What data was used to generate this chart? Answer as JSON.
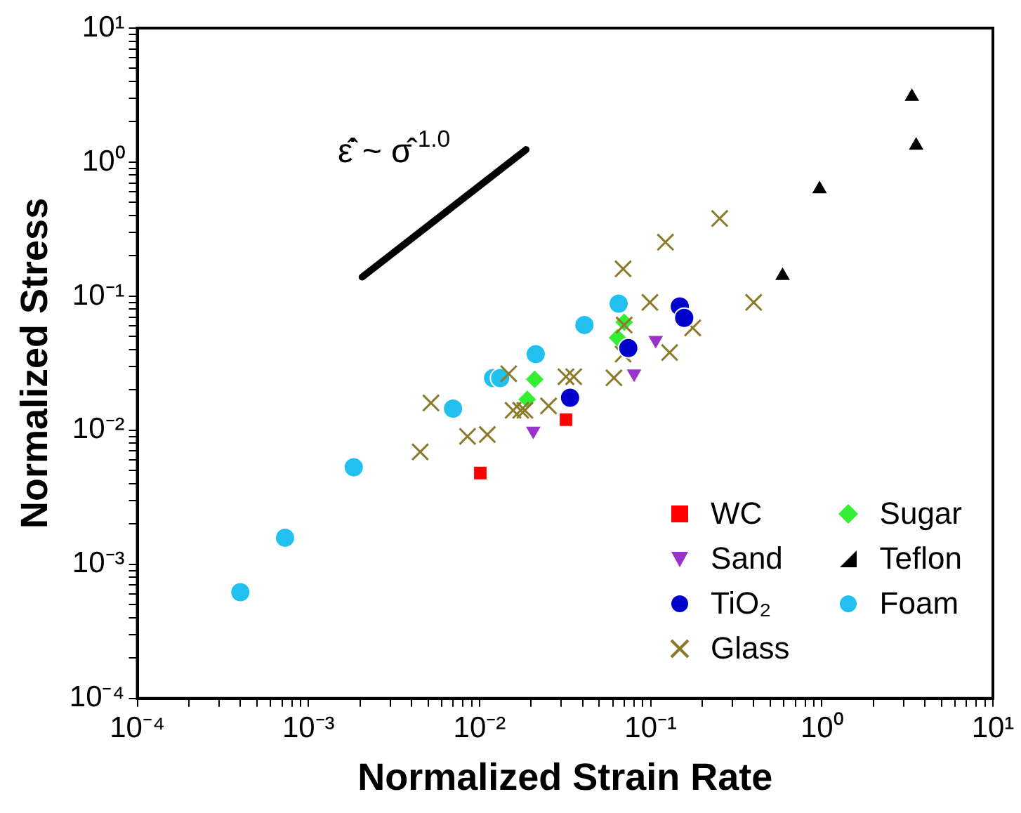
{
  "chart_data": {
    "type": "scatter",
    "xlabel": "Normalized Strain Rate",
    "ylabel": "Normalized Stress",
    "log": "xy",
    "grid": false,
    "legend": "bottom right",
    "xlim": [
      0.0001,
      10
    ],
    "ylim": [
      0.0001,
      10
    ],
    "xticks": [
      {
        "value": 0.0001,
        "label": "10⁻⁴"
      },
      {
        "value": 0.0002,
        "label": null
      },
      {
        "value": 0.0003,
        "label": null
      },
      {
        "value": 0.0004,
        "label": null
      },
      {
        "value": 0.0005,
        "label": null
      },
      {
        "value": 0.0006,
        "label": null
      },
      {
        "value": 0.0007,
        "label": null
      },
      {
        "value": 0.0008,
        "label": null
      },
      {
        "value": 0.0009,
        "label": null
      },
      {
        "value": 0.001,
        "label": "10⁻³"
      },
      {
        "value": 0.002,
        "label": null
      },
      {
        "value": 0.003,
        "label": null
      },
      {
        "value": 0.004,
        "label": null
      },
      {
        "value": 0.005,
        "label": null
      },
      {
        "value": 0.006,
        "label": null
      },
      {
        "value": 0.007,
        "label": null
      },
      {
        "value": 0.008,
        "label": null
      },
      {
        "value": 0.009,
        "label": null
      },
      {
        "value": 0.01,
        "label": "10⁻²"
      },
      {
        "value": 0.02,
        "label": null
      },
      {
        "value": 0.03,
        "label": null
      },
      {
        "value": 0.04,
        "label": null
      },
      {
        "value": 0.05,
        "label": null
      },
      {
        "value": 0.06,
        "label": null
      },
      {
        "value": 0.07,
        "label": null
      },
      {
        "value": 0.08,
        "label": null
      },
      {
        "value": 0.09,
        "label": null
      },
      {
        "value": 0.1,
        "label": "10⁻¹"
      },
      {
        "value": 0.2,
        "label": null
      },
      {
        "value": 0.3,
        "label": null
      },
      {
        "value": 0.4,
        "label": null
      },
      {
        "value": 0.5,
        "label": null
      },
      {
        "value": 0.6,
        "label": null
      },
      {
        "value": 0.7,
        "label": null
      },
      {
        "value": 0.8,
        "label": null
      },
      {
        "value": 0.9,
        "label": null
      },
      {
        "value": 1,
        "label": "10⁰"
      },
      {
        "value": 2,
        "label": null
      },
      {
        "value": 3,
        "label": null
      },
      {
        "value": 4,
        "label": null
      },
      {
        "value": 5,
        "label": null
      },
      {
        "value": 6,
        "label": null
      },
      {
        "value": 7,
        "label": null
      },
      {
        "value": 8,
        "label": null
      },
      {
        "value": 9,
        "label": null
      },
      {
        "value": 10,
        "label": "10¹"
      }
    ],
    "yticks": [
      {
        "value": 0.0001,
        "label": "10⁻⁴"
      },
      {
        "value": 0.0002,
        "label": null
      },
      {
        "value": 0.0003,
        "label": null
      },
      {
        "value": 0.0004,
        "label": null
      },
      {
        "value": 0.0005,
        "label": null
      },
      {
        "value": 0.0006,
        "label": null
      },
      {
        "value": 0.0007,
        "label": null
      },
      {
        "value": 0.0008,
        "label": null
      },
      {
        "value": 0.0009,
        "label": null
      },
      {
        "value": 0.001,
        "label": "10⁻³"
      },
      {
        "value": 0.002,
        "label": null
      },
      {
        "value": 0.003,
        "label": null
      },
      {
        "value": 0.004,
        "label": null
      },
      {
        "value": 0.005,
        "label": null
      },
      {
        "value": 0.006,
        "label": null
      },
      {
        "value": 0.007,
        "label": null
      },
      {
        "value": 0.008,
        "label": null
      },
      {
        "value": 0.009,
        "label": null
      },
      {
        "value": 0.01,
        "label": "10⁻²"
      },
      {
        "value": 0.02,
        "label": null
      },
      {
        "value": 0.03,
        "label": null
      },
      {
        "value": 0.04,
        "label": null
      },
      {
        "value": 0.05,
        "label": null
      },
      {
        "value": 0.06,
        "label": null
      },
      {
        "value": 0.07,
        "label": null
      },
      {
        "value": 0.08,
        "label": null
      },
      {
        "value": 0.09,
        "label": null
      },
      {
        "value": 0.1,
        "label": "10⁻¹"
      },
      {
        "value": 0.2,
        "label": null
      },
      {
        "value": 0.3,
        "label": null
      },
      {
        "value": 0.4,
        "label": null
      },
      {
        "value": 0.5,
        "label": null
      },
      {
        "value": 0.6,
        "label": null
      },
      {
        "value": 0.7,
        "label": null
      },
      {
        "value": 0.8,
        "label": null
      },
      {
        "value": 0.9,
        "label": null
      },
      {
        "value": 1,
        "label": "10⁰"
      },
      {
        "value": 2,
        "label": null
      },
      {
        "value": 3,
        "label": null
      },
      {
        "value": 4,
        "label": null
      },
      {
        "value": 5,
        "label": null
      },
      {
        "value": 6,
        "label": null
      },
      {
        "value": 7,
        "label": null
      },
      {
        "value": 8,
        "label": null
      },
      {
        "value": 9,
        "label": null
      },
      {
        "value": 10,
        "label": "10¹"
      }
    ],
    "annotations": [
      "ε̂̇ ~ σ̂$^{1.0}$"
    ],
    "series": [
      {
        "name": "WC",
        "color": "#ff0000",
        "marker": "square",
        "x": [
          0.0101,
          0.032
        ],
        "values": [
          0.0048,
          0.012
        ]
      },
      {
        "name": "Sand",
        "color": "#9933cc",
        "marker": "triangle-down",
        "x": [
          0.0206,
          0.08,
          0.107
        ],
        "values": [
          0.0099,
          0.0264,
          0.047
        ]
      },
      {
        "name": "TiO₂",
        "color": "#0000cc",
        "marker": "circle",
        "x": [
          0.0338,
          0.074,
          0.148,
          0.157
        ],
        "values": [
          0.0175,
          0.041,
          0.084,
          0.069
        ]
      },
      {
        "name": "Glass",
        "color": "#8b7a2a",
        "marker": "cross",
        "x": [
          0.253,
          0.122,
          0.069,
          0.099,
          0.4,
          0.176,
          0.07,
          0.129,
          0.069,
          0.061,
          0.032,
          0.0355,
          0.0052,
          0.0148,
          0.0253,
          0.0045,
          0.0085,
          0.0111,
          0.0157,
          0.0174,
          0.0184
        ],
        "values": [
          0.38,
          0.253,
          0.16,
          0.09,
          0.09,
          0.058,
          0.061,
          0.038,
          0.037,
          0.0246,
          0.0251,
          0.0251,
          0.016,
          0.0264,
          0.0152,
          0.0069,
          0.009,
          0.0093,
          0.0141,
          0.0141,
          0.0141
        ]
      },
      {
        "name": "Sugar",
        "color": "#33ee33",
        "marker": "diamond",
        "x": [
          0.064,
          0.07,
          0.021,
          0.019
        ],
        "values": [
          0.049,
          0.064,
          0.024,
          0.017
        ]
      },
      {
        "name": "Teflon",
        "color": "#000000",
        "marker": "triangle",
        "x": [
          3.36,
          3.56,
          0.97,
          0.59
        ],
        "values": [
          3.08,
          1.33,
          0.63,
          0.142
        ]
      },
      {
        "name": "Foam",
        "color": "#22c0ee",
        "marker": "circle",
        "x": [
          0.0004,
          0.00073,
          0.00184,
          0.007,
          0.012,
          0.0132,
          0.0213,
          0.041,
          0.065
        ],
        "values": [
          0.00062,
          0.00158,
          0.0053,
          0.0145,
          0.0245,
          0.0245,
          0.037,
          0.061,
          0.088
        ]
      },
      {
        "type": "line",
        "color": "#000000",
        "marker": "none",
        "x": [
          0.00206,
          0.0187
        ],
        "values": [
          0.139,
          1.24
        ]
      }
    ]
  }
}
